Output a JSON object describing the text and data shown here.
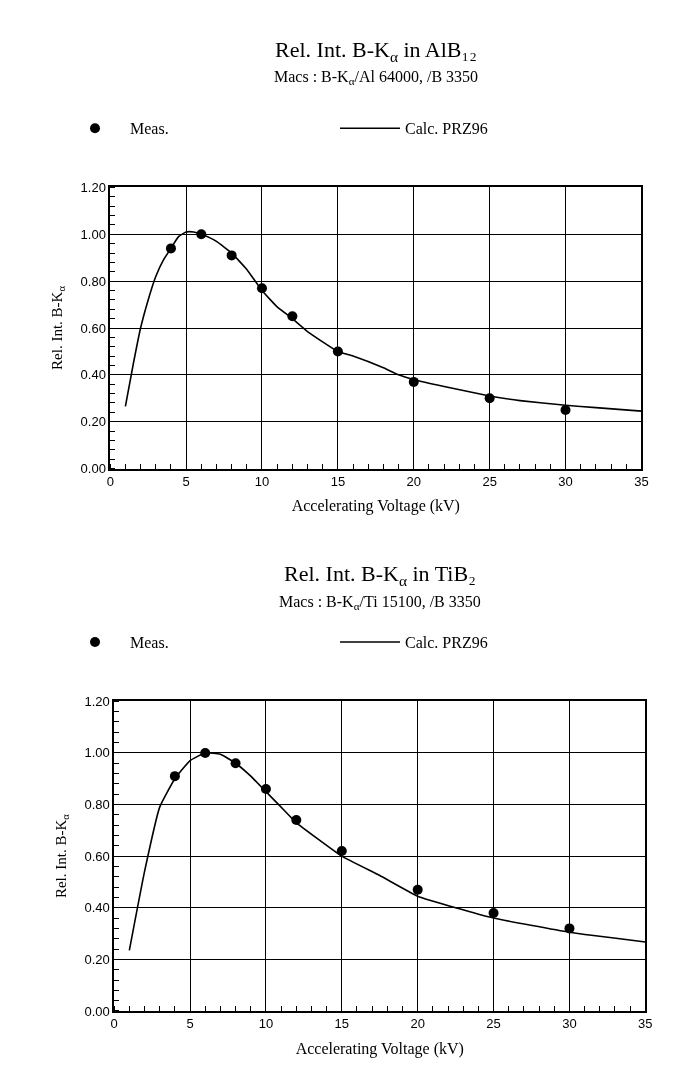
{
  "chart_data": [
    {
      "type": "scatter",
      "title": "Rel. Int. B-K$_{α}$ in AlB₁₂",
      "subtitle": "Macs : B-K$_{α}$/Al 64000, /B 3350",
      "xlabel": "Accelerating Voltage (kV)",
      "ylabel": "Rel. Int. B-K$_{α}$",
      "xlim": [
        0,
        35
      ],
      "xticks": [
        0,
        5,
        10,
        15,
        20,
        25,
        30,
        35
      ],
      "ylim": [
        0,
        1.2
      ],
      "yticks": [
        {
          "value": 0,
          "label": "0.00"
        },
        {
          "value": 0.2,
          "label": "0.20"
        },
        {
          "value": 0.4,
          "label": "0.40"
        },
        {
          "value": 0.6,
          "label": "0.60"
        },
        {
          "value": 0.8,
          "label": "0.80"
        },
        {
          "value": 1.0,
          "label": "1.00"
        },
        {
          "value": 1.2,
          "label": "1.20"
        }
      ],
      "grid": true,
      "legend": "top",
      "series": [
        {
          "name": "Meas.",
          "marker": "circle",
          "color": "#000000",
          "x": [
            4,
            6,
            8,
            10,
            12,
            15,
            20,
            25,
            30
          ],
          "values": [
            0.94,
            1.0,
            0.91,
            0.77,
            0.65,
            0.5,
            0.37,
            0.3,
            0.25
          ]
        },
        {
          "name": "Calc. PRZ96",
          "type": "line",
          "marker": "none",
          "line_style": "solid",
          "color": "#000000",
          "x": [
            1,
            1.5,
            2,
            2.5,
            3,
            3.5,
            4,
            4.5,
            5,
            5.5,
            6,
            7,
            8,
            9,
            10,
            11,
            12,
            13,
            15,
            16,
            18,
            19,
            20,
            22,
            25,
            27,
            30,
            32,
            35
          ],
          "values": [
            0.265,
            0.44,
            0.6,
            0.72,
            0.82,
            0.89,
            0.94,
            0.99,
            1.01,
            1.01,
            1.0,
            0.97,
            0.92,
            0.85,
            0.76,
            0.69,
            0.64,
            0.585,
            0.5,
            0.48,
            0.43,
            0.4,
            0.38,
            0.35,
            0.31,
            0.29,
            0.27,
            0.26,
            0.245
          ]
        }
      ]
    },
    {
      "type": "scatter",
      "title": "Rel. Int. B-K$_{α}$ in TiB₂",
      "subtitle": "Macs : B-K$_{α}$/Ti 15100, /B 3350",
      "xlabel": "Accelerating Voltage (kV)",
      "ylabel": "Rel. Int. B-K$_{α}$",
      "xlim": [
        0,
        35
      ],
      "xticks": [
        0,
        5,
        10,
        15,
        20,
        25,
        30,
        35
      ],
      "ylim": [
        0,
        1.2
      ],
      "yticks": [
        {
          "value": 0,
          "label": "0.00"
        },
        {
          "value": 0.2,
          "label": "0.20"
        },
        {
          "value": 0.4,
          "label": "0.40"
        },
        {
          "value": 0.6,
          "label": "0.60"
        },
        {
          "value": 0.8,
          "label": "0.80"
        },
        {
          "value": 1.0,
          "label": "1.00"
        },
        {
          "value": 1.2,
          "label": "1.20"
        }
      ],
      "grid": true,
      "legend": "top",
      "series": [
        {
          "name": "Meas.",
          "marker": "circle",
          "color": "#000000",
          "x": [
            4,
            6,
            8,
            10,
            12,
            15,
            20,
            25,
            30
          ],
          "values": [
            0.91,
            1.0,
            0.96,
            0.86,
            0.74,
            0.62,
            0.47,
            0.38,
            0.32
          ]
        },
        {
          "name": "Calc. PRZ96",
          "type": "line",
          "marker": "none",
          "line_style": "solid",
          "color": "#000000",
          "x": [
            1,
            2,
            3,
            4,
            5,
            6,
            7,
            8,
            9,
            10,
            11,
            12,
            15,
            17.5,
            20,
            22.5,
            25,
            30,
            35
          ],
          "values": [
            0.235,
            0.54,
            0.79,
            0.9,
            0.97,
            1.0,
            0.995,
            0.96,
            0.91,
            0.85,
            0.79,
            0.73,
            0.6,
            0.525,
            0.445,
            0.4,
            0.36,
            0.305,
            0.267
          ]
        }
      ]
    }
  ]
}
